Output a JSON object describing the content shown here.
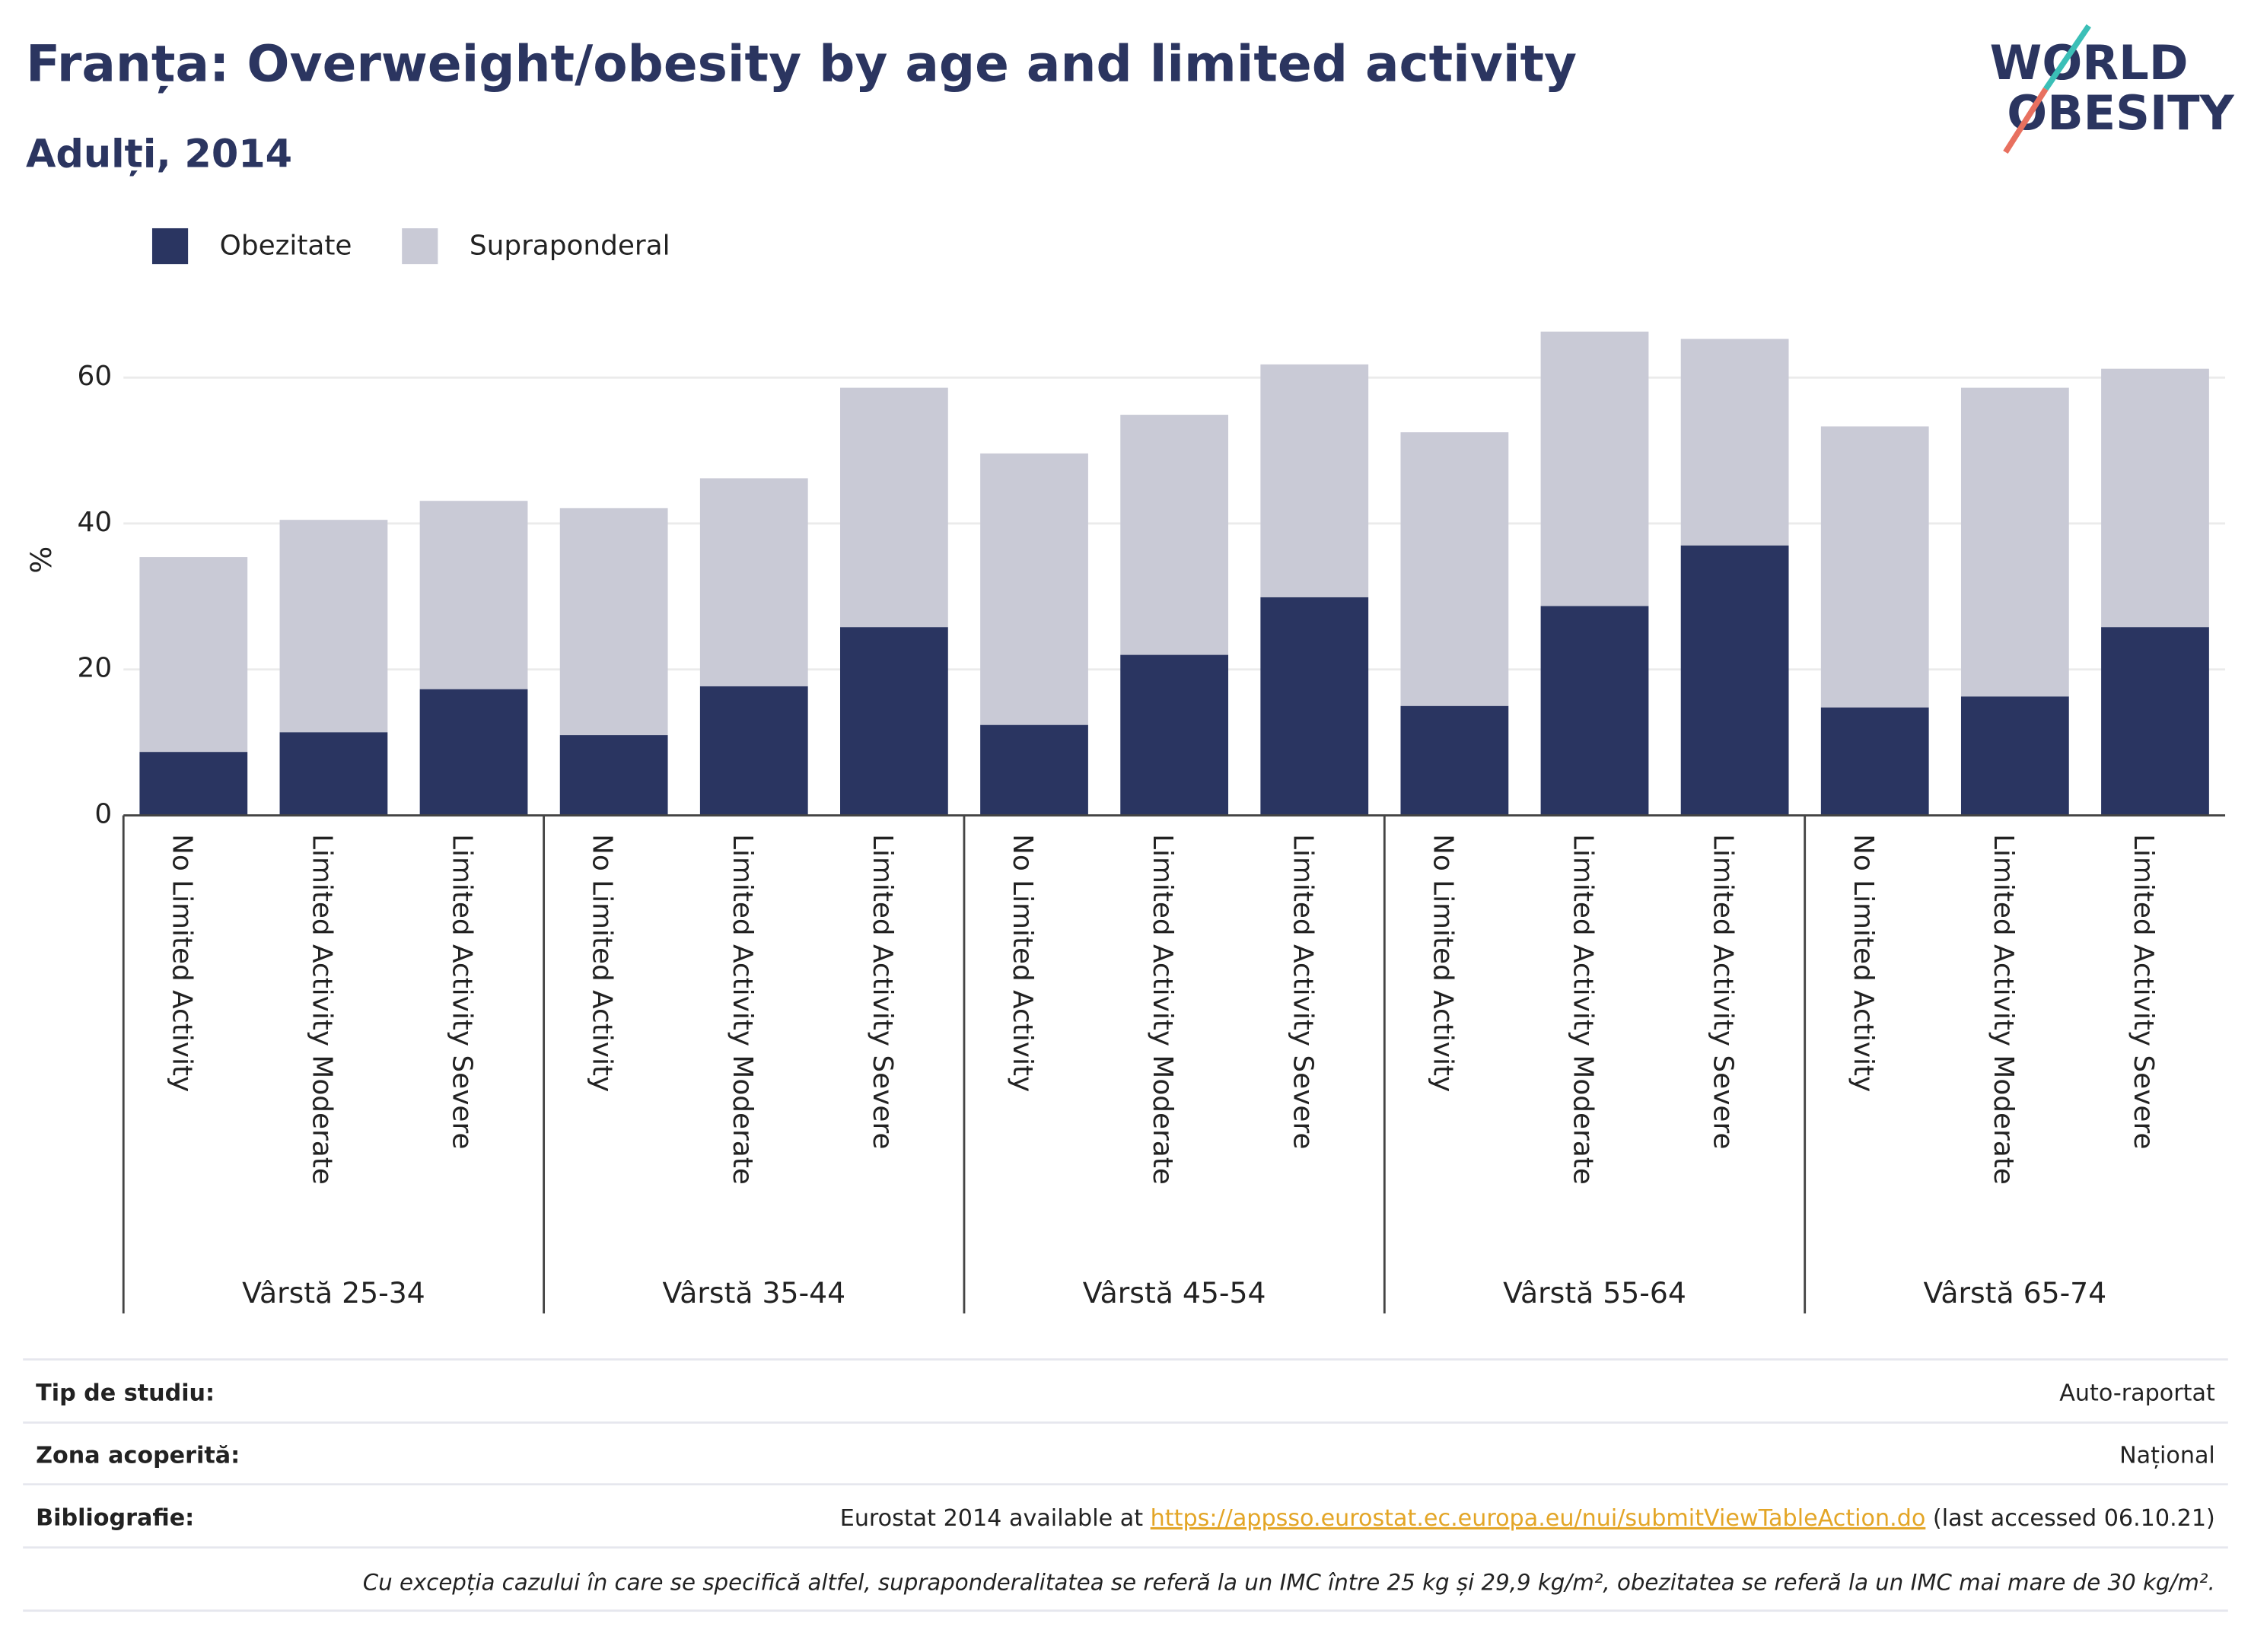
{
  "chart_data": {
    "type": "stacked_bar",
    "title": "Franța: Overweight/obesity by age and limited activity",
    "subtitle": "Adulți, 2014",
    "y_label": "%",
    "groups": [
      "Vârstă 25-34",
      "Vârstă 35-44",
      "Vârstă 45-54",
      "Vârstă 55-64",
      "Vârstă 65-74"
    ],
    "categories": [
      "No Limited Activity",
      "Limited Activity Moderate",
      "Limited Activity Severe",
      "No Limited Activity",
      "Limited Activity Moderate",
      "Limited Activity Severe",
      "No Limited Activity",
      "Limited Activity Moderate",
      "Limited Activity Severe",
      "No Limited Activity",
      "Limited Activity Moderate",
      "Limited Activity Severe",
      "No Limited Activity",
      "Limited Activity Moderate",
      "Limited Activity Severe"
    ],
    "series": [
      {
        "name": "Obezitate",
        "color": "#2a3561",
        "values": [
          8.7,
          11.4,
          17.3,
          11.0,
          17.7,
          25.8,
          12.4,
          22.0,
          29.9,
          15.0,
          28.7,
          37.0,
          14.8,
          16.3,
          25.8
        ]
      },
      {
        "name": "Supraponderal",
        "color": "#c9cad6",
        "values": [
          26.7,
          29.1,
          25.8,
          31.1,
          28.5,
          32.8,
          37.2,
          32.9,
          31.9,
          37.5,
          37.6,
          28.3,
          38.5,
          42.3,
          35.4
        ]
      }
    ],
    "ylim": [
      0,
      68
    ],
    "yticks": [
      0,
      20,
      40,
      60
    ],
    "grid": true,
    "legend": "top-left"
  },
  "logo": [
    "WORLD",
    "OBESITY"
  ],
  "footer": {
    "rows": [
      {
        "label": "Tip de studiu:",
        "value": "Auto-raportat"
      },
      {
        "label": "Zona acoperită:",
        "value": "Național"
      }
    ],
    "bibliography": {
      "label": "Bibliografie:",
      "prefix": "Eurostat 2014 available at ",
      "link": "https://appsso.eurostat.ec.europa.eu/nui/submitViewTableAction.do",
      "suffix": " (last accessed 06.10.21)"
    },
    "note": "Cu excepția cazului în care se specifică altfel, supraponderalitatea se referă la un IMC între 25 kg și 29,9 kg/m², obezitatea se referă la un IMC mai mare de 30 kg/m²."
  }
}
